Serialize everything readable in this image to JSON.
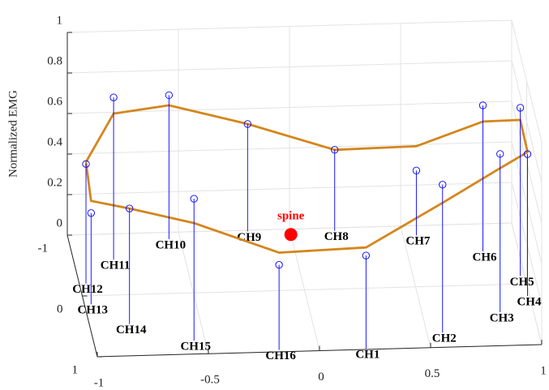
{
  "chart_data": {
    "type": "stem3",
    "zlabel": "Normalized EMG",
    "categories": [
      "CH1",
      "CH2",
      "CH3",
      "CH4",
      "CH5",
      "CH6",
      "CH7",
      "CH8",
      "CH9",
      "CH10",
      "CH11",
      "CH12",
      "CH13",
      "CH14",
      "CH15",
      "CH16"
    ],
    "x": [
      0.21,
      0.57,
      0.85,
      0.99,
      0.98,
      0.84,
      0.56,
      0.2,
      -0.19,
      -0.55,
      -0.82,
      -0.97,
      -0.97,
      -0.82,
      -0.55,
      -0.18
    ],
    "y": [
      0.99,
      0.76,
      0.45,
      0.2,
      -0.13,
      -0.55,
      -0.84,
      -0.95,
      -0.98,
      -0.89,
      -0.58,
      -0.2,
      0.14,
      0.48,
      0.78,
      0.97
    ],
    "series": [
      {
        "color": "#0000ff",
        "values": [
          0.46,
          0.73,
          0.78,
          0.7,
          0.83,
          0.72,
          0.32,
          0.4,
          0.53,
          0.71,
          0.8,
          0.59,
          0.45,
          0.57,
          0.7,
          0.42
        ]
      },
      {
        "color": "#d4861c",
        "values": [
          0.5,
          0.64,
          0.71,
          0.71,
          0.77,
          0.64,
          0.44,
          0.4,
          0.53,
          0.66,
          0.72,
          0.6,
          0.51,
          0.57,
          0.58,
          0.48
        ]
      }
    ],
    "spine": {
      "label": "spine",
      "x": 0,
      "y": -0.91,
      "color": "#ff0000"
    },
    "xlim": [
      -1,
      1
    ],
    "xticks": [
      -1,
      -0.5,
      0,
      0.5,
      1
    ],
    "ylim": [
      -1,
      1
    ],
    "yticks": [
      -1,
      0,
      1
    ],
    "zlim": [
      0,
      1
    ],
    "zticks": [
      0,
      0.2,
      0.4,
      0.6,
      0.8,
      1
    ],
    "grid": true
  }
}
